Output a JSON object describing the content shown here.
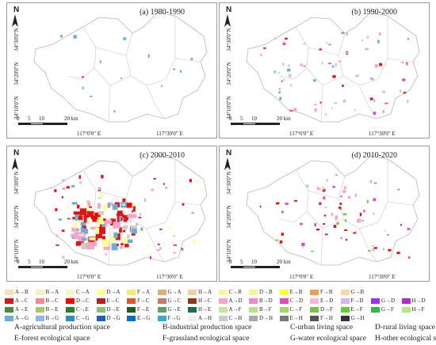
{
  "panels": [
    {
      "title": "(a) 1980-1990",
      "coords": [
        "34°30'0\"N",
        "34°20'0\"N",
        "34°10'0\"N"
      ],
      "scale": [
        "0",
        "5",
        "10",
        "20 km"
      ],
      "xticks": [
        "117°0'0\" E",
        "117°30'0\" E"
      ],
      "north": "N",
      "density": "sparse"
    },
    {
      "title": "(b) 1990-2000",
      "coords": [
        "34°30'0\"N",
        "34°20'0\"N",
        "34°10'0\"N"
      ],
      "scale": [
        "0",
        "5",
        "10",
        "20 km"
      ],
      "xticks": [
        "117°0'0\" E",
        "117°30'0\" E"
      ],
      "north": "N",
      "density": "low"
    },
    {
      "title": "(c) 2000-2010",
      "coords": [
        "34°30'0\"N",
        "34°20'0\"N",
        "34°10'0\"N"
      ],
      "scale": [
        "0",
        "5",
        "10",
        "20 km"
      ],
      "xticks": [
        "117°0'0\" E",
        "117°30'0\" E"
      ],
      "north": "N",
      "density": "high"
    },
    {
      "title": "(d) 2010-2020",
      "coords": [
        "34°30'0\"N",
        "34°20'0\"N",
        "34°10'0\"N"
      ],
      "scale": [
        "0",
        "5",
        "10",
        "20 km"
      ],
      "xticks": [
        "117°0'0\" E",
        "117°30'0\" E"
      ],
      "north": "N",
      "density": "medium"
    }
  ],
  "legend": [
    [
      {
        "label": "A→B",
        "color": "#f6dfb4"
      },
      {
        "label": "B→A",
        "color": "#fbeec0"
      },
      {
        "label": "C→A",
        "color": "#f5f5c8"
      },
      {
        "label": "D→A",
        "color": "#ffff99"
      },
      {
        "label": "F→A",
        "color": "#f7e87a"
      },
      {
        "label": "G→A",
        "color": "#d8b27a"
      },
      {
        "label": "H→A",
        "color": "#f2cf9e"
      },
      {
        "label": "C→B",
        "color": "#fff3a6"
      },
      {
        "label": "D→B",
        "color": "#f9f29a"
      },
      {
        "label": "E→B",
        "color": "#ffff33"
      },
      {
        "label": "F→B",
        "color": "#e7a24e"
      },
      {
        "label": "G→B",
        "color": "#f7d7a8"
      }
    ],
    [
      {
        "label": "A→C",
        "color": "#d7191c"
      },
      {
        "label": "B→C",
        "color": "#f28c8c"
      },
      {
        "label": "D→C",
        "color": "#ff0000"
      },
      {
        "label": "E→C",
        "color": "#b22222"
      },
      {
        "label": "F→C",
        "color": "#e5532a"
      },
      {
        "label": "G→C",
        "color": "#c97a6d"
      },
      {
        "label": "H→C",
        "color": "#8b3a1a"
      },
      {
        "label": "A→D",
        "color": "#f4a6c8"
      },
      {
        "label": "B→D",
        "color": "#ee8ad0"
      },
      {
        "label": "C→D",
        "color": "#e34ac0"
      },
      {
        "label": "E→D",
        "color": "#f3b7d8"
      },
      {
        "label": "F→D",
        "color": "#d7b5f0"
      },
      {
        "label": "G→D",
        "color": "#9b30ff"
      },
      {
        "label": "H→D",
        "color": "#b12fc8"
      }
    ],
    [
      {
        "label": "A→E",
        "color": "#4e8a3a"
      },
      {
        "label": "B→E",
        "color": "#a8c66c"
      },
      {
        "label": "C→E",
        "color": "#2e7d32"
      },
      {
        "label": "D→E",
        "color": "#8ec07c"
      },
      {
        "label": "F→E",
        "color": "#1b5e20"
      },
      {
        "label": "G→E",
        "color": "#5f9e6e"
      },
      {
        "label": "H→E",
        "color": "#1f6b5a"
      },
      {
        "label": "A→F",
        "color": "#c6e5a0"
      },
      {
        "label": "B→F",
        "color": "#b8e08a"
      },
      {
        "label": "C→F",
        "color": "#9fd66a"
      },
      {
        "label": "D→F",
        "color": "#77c24a"
      },
      {
        "label": "E→F",
        "color": "#66cc33"
      },
      {
        "label": "G→F",
        "color": "#39b54a"
      },
      {
        "label": "H→F",
        "color": "#b5e58a"
      }
    ],
    [
      {
        "label": "A→G",
        "color": "#6baed6"
      },
      {
        "label": "B→G",
        "color": "#8fb8e8"
      },
      {
        "label": "C→G",
        "color": "#2b8cbe"
      },
      {
        "label": "D→G",
        "color": "#1f5fbf"
      },
      {
        "label": "E→G",
        "color": "#0070c0"
      },
      {
        "label": "F→G",
        "color": "#39a7d6"
      },
      {
        "label": "A→H",
        "color": "#eeeeee"
      },
      {
        "label": "C→H",
        "color": "#cccccc"
      },
      {
        "label": "D→H",
        "color": "#aaaaaa"
      },
      {
        "label": "E→H",
        "color": "#777777"
      },
      {
        "label": "F→H",
        "color": "#555555"
      },
      {
        "label": "G→H",
        "color": "#333333"
      }
    ]
  ],
  "descriptions": [
    "A-agricultural production space",
    "B-industrial production space",
    "C-urban living space",
    "D-rural living space",
    "E-forest ecological space",
    "F-grassland ecological space",
    "G-water ecological space",
    "H-other ecological space"
  ]
}
